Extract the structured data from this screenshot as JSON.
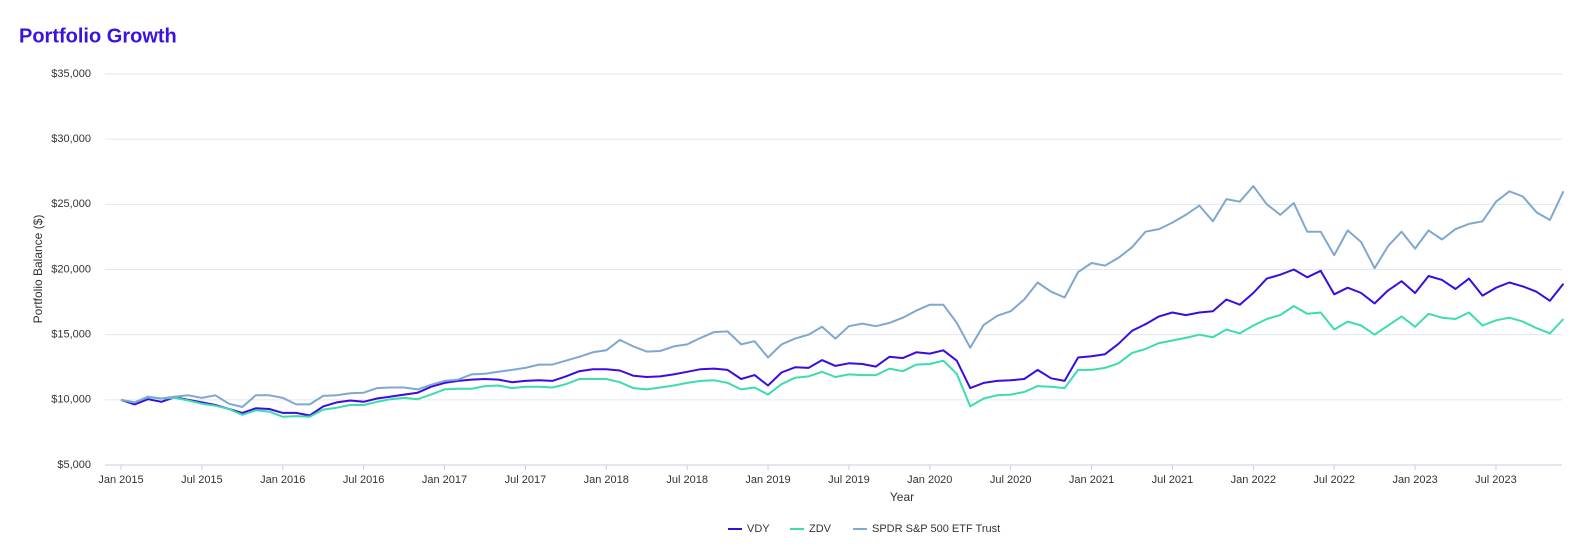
{
  "chart_data": {
    "type": "line",
    "title": "Portfolio Growth",
    "x_label": "Year",
    "y_label": "Portfolio Balance ($)",
    "categories": [
      "Jan 2015",
      null,
      null,
      null,
      null,
      null,
      "Jul 2015",
      null,
      null,
      null,
      null,
      null,
      "Jan 2016",
      null,
      null,
      null,
      null,
      null,
      "Jul 2016",
      null,
      null,
      null,
      null,
      null,
      "Jan 2017",
      null,
      null,
      null,
      null,
      null,
      "Jul 2017",
      null,
      null,
      null,
      null,
      null,
      "Jan 2018",
      null,
      null,
      null,
      null,
      null,
      "Jul 2018",
      null,
      null,
      null,
      null,
      null,
      "Jan 2019",
      null,
      null,
      null,
      null,
      null,
      "Jul 2019",
      null,
      null,
      null,
      null,
      null,
      "Jan 2020",
      null,
      null,
      null,
      null,
      null,
      "Jul 2020",
      null,
      null,
      null,
      null,
      null,
      "Jan 2021",
      null,
      null,
      null,
      null,
      null,
      "Jul 2021",
      null,
      null,
      null,
      null,
      null,
      "Jan 2022",
      null,
      null,
      null,
      null,
      null,
      "Jul 2022",
      null,
      null,
      null,
      null,
      null,
      "Jan 2023",
      null,
      null,
      null,
      null,
      null,
      "Jul 2023",
      null,
      null,
      null,
      null,
      null
    ],
    "ylim": [
      5000,
      35000
    ],
    "yticks": [
      {
        "value": 5000,
        "label": "$5,000"
      },
      {
        "value": 10000,
        "label": "$10,000"
      },
      {
        "value": 15000,
        "label": "$15,000"
      },
      {
        "value": 20000,
        "label": "$20,000"
      },
      {
        "value": 25000,
        "label": "$25,000"
      },
      {
        "value": 30000,
        "label": "$30,000"
      },
      {
        "value": 35000,
        "label": "$35,000"
      }
    ],
    "grid": true,
    "legend": "bottom",
    "series": [
      {
        "name": "VDY",
        "color": "#3a0ce0",
        "values": [
          10000,
          9650,
          10050,
          9850,
          10200,
          10000,
          9800,
          9600,
          9300,
          9000,
          9350,
          9300,
          9000,
          9000,
          8800,
          9500,
          9800,
          9950,
          9850,
          10100,
          10250,
          10400,
          10550,
          11000,
          11300,
          11450,
          11550,
          11600,
          11550,
          11350,
          11450,
          11500,
          11450,
          11800,
          12200,
          12350,
          12350,
          12250,
          11850,
          11750,
          11800,
          11950,
          12150,
          12350,
          12400,
          12300,
          11600,
          11900,
          11100,
          12100,
          12500,
          12450,
          13050,
          12600,
          12800,
          12750,
          12550,
          13300,
          13200,
          13650,
          13550,
          13800,
          13000,
          10900,
          11300,
          11450,
          11500,
          11600,
          12300,
          11650,
          11450,
          13250,
          13350,
          13500,
          14300,
          15300,
          15800,
          16400,
          16700,
          16500,
          16700,
          16800,
          17700,
          17300,
          18200,
          19300,
          19600,
          20000,
          19400,
          19900,
          18100,
          18600,
          18200,
          17400,
          18400,
          19100,
          18200,
          19500,
          19200,
          18500,
          19300,
          18000,
          18600,
          19000,
          18700,
          18300,
          17600,
          18900
        ]
      },
      {
        "name": "ZDV",
        "color": "#3ddcb0",
        "values": [
          10000,
          9800,
          10250,
          10100,
          10150,
          9950,
          9700,
          9550,
          9300,
          8850,
          9200,
          9100,
          8700,
          8750,
          8700,
          9250,
          9400,
          9600,
          9600,
          9850,
          10050,
          10150,
          10050,
          10400,
          10800,
          10850,
          10850,
          11050,
          11100,
          10900,
          11000,
          11000,
          10950,
          11200,
          11600,
          11600,
          11600,
          11350,
          10900,
          10800,
          10950,
          11100,
          11300,
          11450,
          11500,
          11300,
          10800,
          10950,
          10400,
          11200,
          11700,
          11800,
          12150,
          11750,
          11950,
          11900,
          11900,
          12400,
          12200,
          12700,
          12750,
          13000,
          12000,
          9500,
          10100,
          10350,
          10400,
          10600,
          11050,
          11000,
          10900,
          12300,
          12300,
          12450,
          12800,
          13600,
          13900,
          14350,
          14550,
          14750,
          15000,
          14800,
          15400,
          15100,
          15700,
          16200,
          16500,
          17200,
          16600,
          16700,
          15400,
          16000,
          15700,
          15000,
          15700,
          16400,
          15600,
          16600,
          16300,
          16200,
          16700,
          15700,
          16100,
          16300,
          16000,
          15500,
          15100,
          16200
        ]
      },
      {
        "name": "SPDR S&P 500 ETF Trust",
        "color": "#7fa8d0",
        "values": [
          10000,
          9800,
          10200,
          10100,
          10250,
          10350,
          10150,
          10350,
          9700,
          9450,
          10350,
          10350,
          10150,
          9650,
          9650,
          10300,
          10350,
          10500,
          10550,
          10900,
          10950,
          10950,
          10800,
          11150,
          11450,
          11550,
          11950,
          12000,
          12150,
          12300,
          12450,
          12700,
          12700,
          13000,
          13300,
          13650,
          13800,
          14600,
          14100,
          13700,
          13750,
          14100,
          14250,
          14750,
          15200,
          15250,
          14250,
          14500,
          13250,
          14250,
          14700,
          15000,
          15600,
          14700,
          15650,
          15850,
          15650,
          15900,
          16300,
          16850,
          17300,
          17300,
          15900,
          14000,
          15750,
          16450,
          16800,
          17700,
          19000,
          18300,
          17850,
          19800,
          20500,
          20300,
          20900,
          21700,
          22900,
          23100,
          23600,
          24200,
          24900,
          23700,
          25400,
          25200,
          26400,
          25000,
          24200,
          25100,
          22900,
          22900,
          21100,
          23000,
          22100,
          20100,
          21800,
          22900,
          21600,
          23000,
          22300,
          23100,
          23500,
          23700,
          25200,
          26000,
          25600,
          24400,
          23800,
          26000
        ]
      }
    ]
  }
}
